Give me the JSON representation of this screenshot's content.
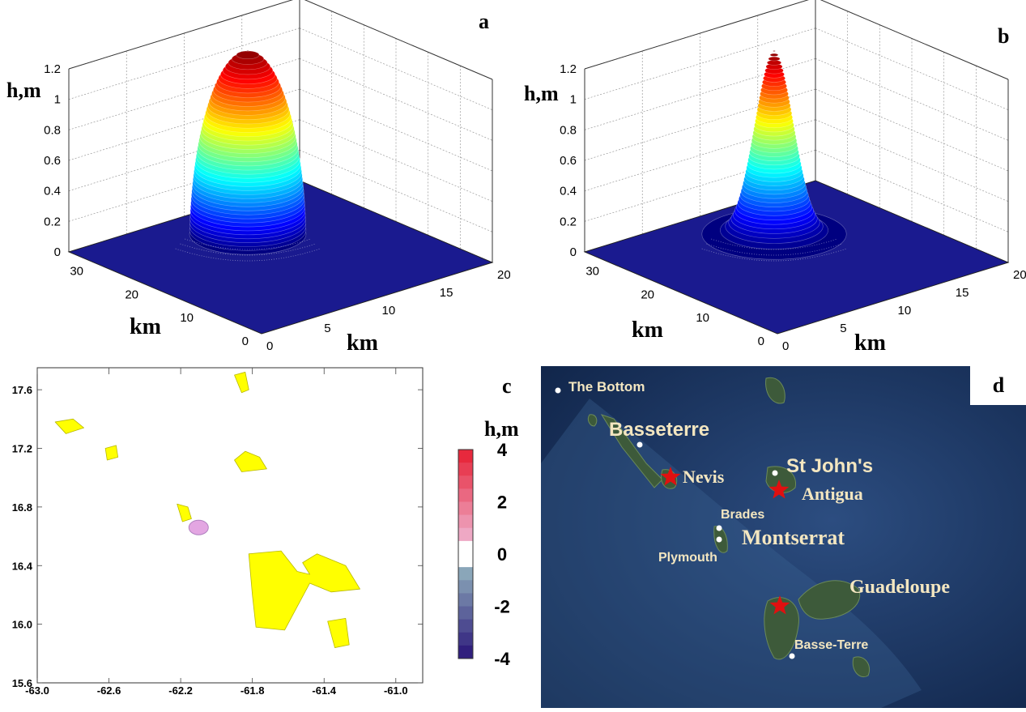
{
  "panels": {
    "a": {
      "letter": "a"
    },
    "b": {
      "letter": "b"
    },
    "c": {
      "letter": "c"
    },
    "d": {
      "letter": "d"
    }
  },
  "chart_data": [
    {
      "type": "surface3d",
      "panel": "a",
      "zlabel": "h,m",
      "xlabel": "km",
      "ylabel": "km",
      "z_ticks": [
        "0",
        "0.2",
        "0.4",
        "0.6",
        "0.8",
        "1",
        "1.2"
      ],
      "x_ticks": [
        "0",
        "5",
        "10",
        "15",
        "20"
      ],
      "y_ticks": [
        "0",
        "10",
        "20",
        "30"
      ],
      "zlim": [
        0,
        1.2
      ],
      "xlim": [
        0,
        20
      ],
      "ylim": [
        0,
        35
      ],
      "peak_height": 1.2,
      "shape": "flat-topped dome",
      "colormap": "jet"
    },
    {
      "type": "surface3d",
      "panel": "b",
      "zlabel": "h,m",
      "xlabel": "km",
      "ylabel": "km",
      "z_ticks": [
        "0",
        "0.2",
        "0.4",
        "0.6",
        "0.8",
        "1",
        "1.2"
      ],
      "x_ticks": [
        "0",
        "5",
        "10",
        "15",
        "20"
      ],
      "y_ticks": [
        "0",
        "10",
        "20",
        "30"
      ],
      "zlim": [
        0,
        1.2
      ],
      "xlim": [
        0,
        20
      ],
      "ylim": [
        0,
        35
      ],
      "peak_height": 1.2,
      "shape": "gaussian",
      "colormap": "jet"
    },
    {
      "type": "heatmap",
      "panel": "c",
      "x_ticks": [
        "-63.0",
        "-62.6",
        "-62.2",
        "-61.8",
        "-61.4",
        "-61.0"
      ],
      "y_ticks": [
        "17.6",
        "17.2",
        "16.8",
        "16.4",
        "16.0",
        "15.6"
      ],
      "xlim": [
        -63.0,
        -60.85
      ],
      "ylim": [
        15.6,
        17.75
      ],
      "colorbar": {
        "label": "h,m",
        "ticks": [
          "4",
          "2",
          "0",
          "-2",
          "-4"
        ],
        "range": [
          -4,
          4
        ]
      },
      "source": {
        "lon": -62.1,
        "lat": 16.66,
        "h": 0.5
      },
      "land_color": "#ffff00"
    }
  ],
  "map": {
    "panel": "d",
    "places": [
      {
        "name": "The Bottom"
      },
      {
        "name": "Basseterre"
      },
      {
        "name": "Nevis"
      },
      {
        "name": "St John's"
      },
      {
        "name": "Antigua"
      },
      {
        "name": "Brades"
      },
      {
        "name": "Montserrat"
      },
      {
        "name": "Plymouth"
      },
      {
        "name": "Guadeloupe"
      },
      {
        "name": "Basse-Terre"
      }
    ],
    "ocean_color": "#1f3a66",
    "marker_color": "#e01010"
  }
}
